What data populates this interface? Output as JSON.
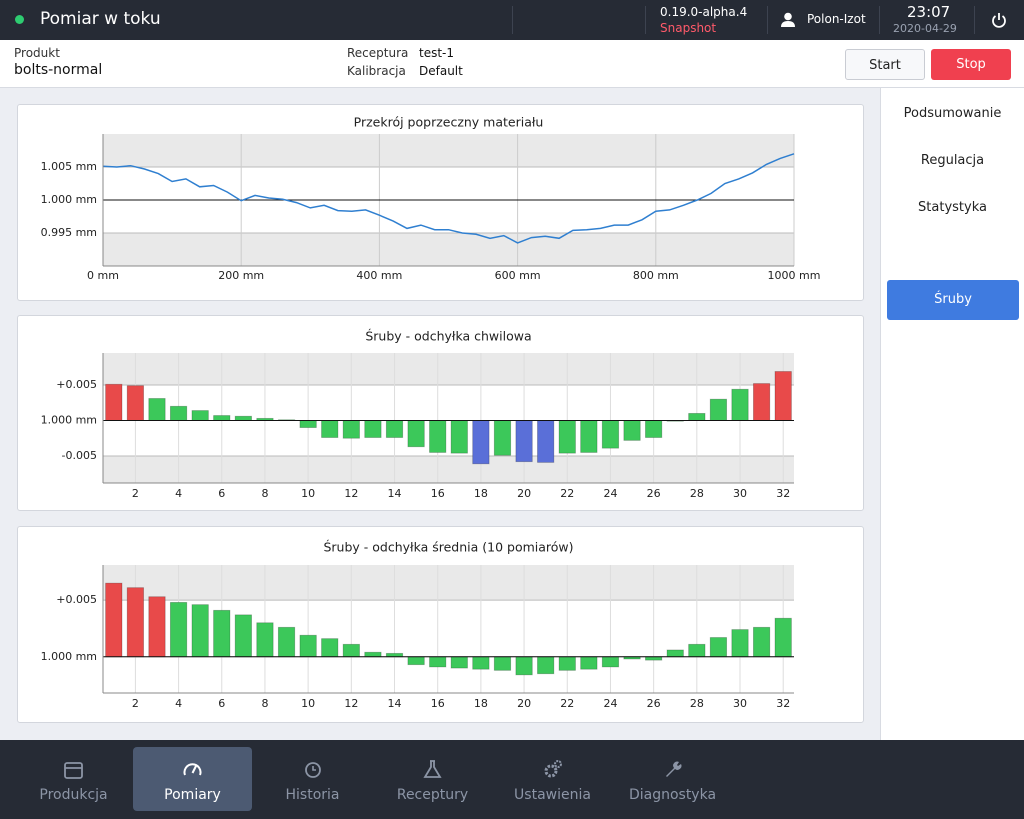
{
  "status_bar": {
    "title": "Pomiar w toku",
    "version": "0.19.0-alpha.4",
    "build": "Snapshot",
    "user": "Polon-Izot",
    "time": "23:07",
    "date": "2020-04-29"
  },
  "info_bar": {
    "product_label": "Produkt",
    "product": "bolts-normal",
    "recipe_label": "Receptura",
    "recipe": "test-1",
    "calibration_label": "Kalibracja",
    "calibration": "Default",
    "start": "Start",
    "stop": "Stop"
  },
  "sidebar": {
    "items": [
      "Podsumowanie",
      "Regulacja",
      "Statystyka"
    ],
    "active": "Śruby"
  },
  "nav": {
    "items": [
      "Produkcja",
      "Pomiary",
      "Historia",
      "Receptury",
      "Ustawienia",
      "Diagnostyka"
    ],
    "active": 1
  },
  "chart_data": [
    {
      "type": "line",
      "title": "Przekrój poprzeczny materiału",
      "color": "#2f7fd0",
      "x": [
        0,
        20,
        40,
        60,
        80,
        100,
        120,
        140,
        160,
        180,
        200,
        220,
        240,
        260,
        280,
        300,
        320,
        340,
        360,
        380,
        400,
        420,
        440,
        460,
        480,
        500,
        520,
        540,
        560,
        580,
        600,
        620,
        640,
        660,
        680,
        700,
        720,
        740,
        760,
        780,
        800,
        820,
        840,
        860,
        880,
        900,
        920,
        940,
        960,
        980,
        1000
      ],
      "values": [
        1.0051,
        1.005,
        1.0052,
        1.0047,
        1.004,
        1.0028,
        1.0032,
        1.002,
        1.0022,
        1.0012,
        0.9999,
        1.0007,
        1.0003,
        1.0001,
        0.9996,
        0.9988,
        0.9992,
        0.9984,
        0.9983,
        0.9985,
        0.9977,
        0.9968,
        0.9957,
        0.9962,
        0.9955,
        0.9955,
        0.995,
        0.9948,
        0.9942,
        0.9946,
        0.9935,
        0.9943,
        0.9945,
        0.9942,
        0.9954,
        0.9955,
        0.9957,
        0.9962,
        0.9962,
        0.997,
        0.9983,
        0.9985,
        0.9992,
        1.0,
        1.001,
        1.0025,
        1.0032,
        1.0041,
        1.0054,
        1.0063,
        1.007
      ],
      "xlim": [
        0,
        1000
      ],
      "xticks": [
        {
          "value": 0,
          "label": "0 mm"
        },
        {
          "value": 200,
          "label": "200 mm"
        },
        {
          "value": 400,
          "label": "400 mm"
        },
        {
          "value": 600,
          "label": "600 mm"
        },
        {
          "value": 800,
          "label": "800 mm"
        },
        {
          "value": 1000,
          "label": "1000 mm"
        }
      ],
      "ylim": [
        0.99,
        1.01
      ],
      "yticks": [
        {
          "value": 0.995,
          "label": "0.995 mm"
        },
        {
          "value": 1.0,
          "label": "1.000 mm"
        },
        {
          "value": 1.005,
          "label": "1.005 mm"
        }
      ],
      "reference": 1.0
    },
    {
      "type": "bar",
      "title": "Śruby - odchyłka chwilowa",
      "categories": [
        null,
        "2",
        null,
        "4",
        null,
        "6",
        null,
        "8",
        null,
        "10",
        null,
        "12",
        null,
        "14",
        null,
        "16",
        null,
        "18",
        null,
        "20",
        null,
        "22",
        null,
        "24",
        null,
        "26",
        null,
        "28",
        null,
        "30",
        null,
        "32"
      ],
      "values": [
        0.0051,
        0.0049,
        0.0031,
        0.002,
        0.0014,
        0.0007,
        0.0006,
        0.0003,
        0.0001,
        -0.001,
        -0.0024,
        -0.0025,
        -0.0024,
        -0.0024,
        -0.0037,
        -0.0045,
        -0.0046,
        -0.0061,
        -0.0049,
        -0.0058,
        -0.0059,
        -0.0046,
        -0.0045,
        -0.0039,
        -0.0028,
        -0.0024,
        -0.0001,
        0.001,
        0.003,
        0.0044,
        0.0052,
        0.0069
      ],
      "colors": [
        "#e84a4a",
        "#e84a4a",
        "#3cc85a",
        "#3cc85a",
        "#3cc85a",
        "#3cc85a",
        "#3cc85a",
        "#3cc85a",
        "#3cc85a",
        "#3cc85a",
        "#3cc85a",
        "#3cc85a",
        "#3cc85a",
        "#3cc85a",
        "#3cc85a",
        "#3cc85a",
        "#3cc85a",
        "#5a6fd8",
        "#3cc85a",
        "#5a6fd8",
        "#5a6fd8",
        "#3cc85a",
        "#3cc85a",
        "#3cc85a",
        "#3cc85a",
        "#3cc85a",
        "#3cc85a",
        "#3cc85a",
        "#3cc85a",
        "#3cc85a",
        "#e84a4a",
        "#e84a4a"
      ],
      "ylim": [
        -0.0088,
        0.0095
      ],
      "yticks": [
        {
          "value": -0.005,
          "label": "-0.005"
        },
        {
          "value": 0,
          "label": "1.000 mm"
        },
        {
          "value": 0.005,
          "label": "+0.005"
        }
      ],
      "reference": 0
    },
    {
      "type": "bar",
      "title": "Śruby - odchyłka średnia (10 pomiarów)",
      "categories": [
        null,
        "2",
        null,
        "4",
        null,
        "6",
        null,
        "8",
        null,
        "10",
        null,
        "12",
        null,
        "14",
        null,
        "16",
        null,
        "18",
        null,
        "20",
        null,
        "22",
        null,
        "24",
        null,
        "26",
        null,
        "28",
        null,
        "30",
        null,
        "32"
      ],
      "values": [
        0.0065,
        0.0061,
        0.0053,
        0.0048,
        0.0046,
        0.0041,
        0.0037,
        0.003,
        0.0026,
        0.0019,
        0.0016,
        0.0011,
        0.0004,
        0.0003,
        -0.0007,
        -0.0009,
        -0.001,
        -0.0011,
        -0.0012,
        -0.0016,
        -0.0015,
        -0.0012,
        -0.0011,
        -0.0009,
        -0.0002,
        -0.0003,
        0.0006,
        0.0011,
        0.0017,
        0.0024,
        0.0026,
        0.0034
      ],
      "colors": [
        "#e84a4a",
        "#e84a4a",
        "#e84a4a",
        "#3cc85a",
        "#3cc85a",
        "#3cc85a",
        "#3cc85a",
        "#3cc85a",
        "#3cc85a",
        "#3cc85a",
        "#3cc85a",
        "#3cc85a",
        "#3cc85a",
        "#3cc85a",
        "#3cc85a",
        "#3cc85a",
        "#3cc85a",
        "#3cc85a",
        "#3cc85a",
        "#3cc85a",
        "#3cc85a",
        "#3cc85a",
        "#3cc85a",
        "#3cc85a",
        "#3cc85a",
        "#3cc85a",
        "#3cc85a",
        "#3cc85a",
        "#3cc85a",
        "#3cc85a",
        "#3cc85a",
        "#3cc85a"
      ],
      "ylim": [
        -0.0032,
        0.0081
      ],
      "yticks": [
        {
          "value": 0,
          "label": "1.000 mm"
        },
        {
          "value": 0.005,
          "label": "+0.005"
        }
      ],
      "reference": 0
    }
  ]
}
